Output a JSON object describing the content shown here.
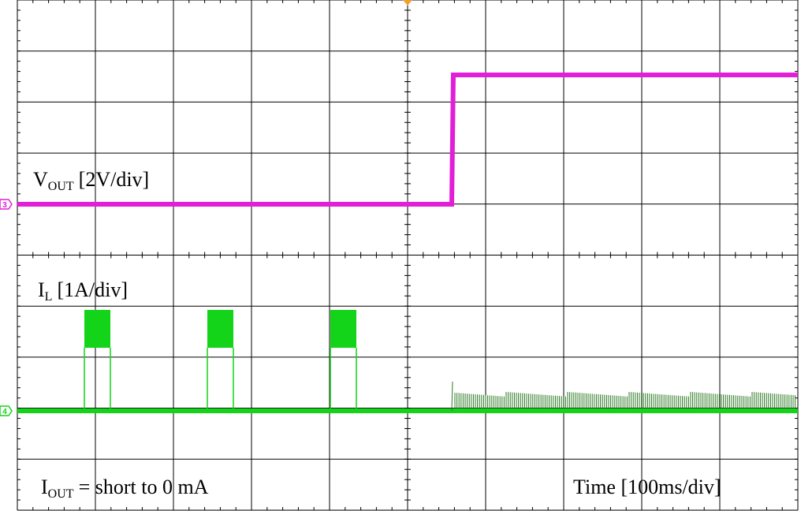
{
  "labels": {
    "vout": {
      "main": "V",
      "sub": "OUT",
      "rest": "[2V/div]"
    },
    "il": {
      "main": "I",
      "sub": "L",
      "rest": "[1A/div]"
    },
    "iout": {
      "main": "I",
      "sub": "OUT",
      "rest": "= short to 0 mA"
    },
    "time": "Time [100ms/div]"
  },
  "channel_markers": {
    "vout": "3",
    "il": "4"
  }
}
